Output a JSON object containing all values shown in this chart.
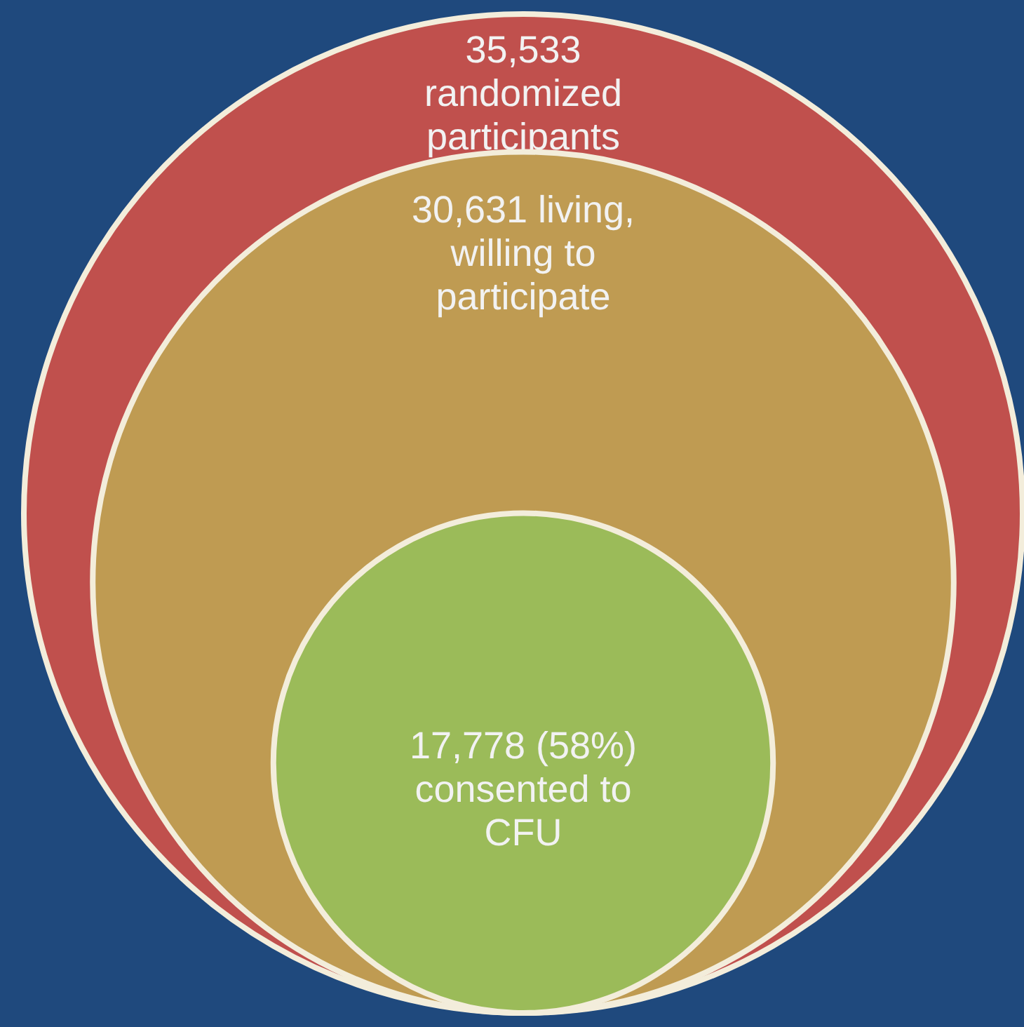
{
  "chart_data": {
    "type": "other",
    "categories": [
      "randomized participants",
      "living, willing to participate",
      "(58%) consented to CFU"
    ],
    "values": [
      35533,
      30631,
      17778
    ],
    "value_labels": [
      "35,533",
      "30,631",
      "17,778"
    ],
    "colors": [
      "#c0504d",
      "#bf9b52",
      "#9bbb59"
    ]
  }
}
